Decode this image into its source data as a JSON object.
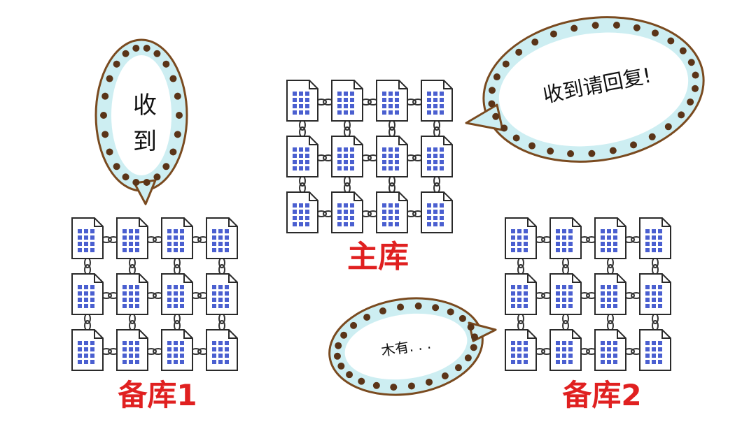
{
  "colors": {
    "label": "#e02020",
    "doc_border": "#2a2a2a",
    "doc_grid": "#4a5fd0",
    "bubble_fill": "#cdeef2",
    "bubble_outline": "#7a4a1f",
    "bubble_dot": "#5a3418",
    "chain": "#333333"
  },
  "icons": {
    "document": "document-grid-icon",
    "link": "chain-link-icon"
  },
  "grid": {
    "rows": 3,
    "cols": 4
  },
  "databases": {
    "primary": {
      "label": "主库"
    },
    "backup1": {
      "label": "备库1"
    },
    "backup2": {
      "label": "备库2"
    }
  },
  "bubbles": {
    "backup1": {
      "line1": "收",
      "line2": "到"
    },
    "primary": {
      "text": "收到请回复!"
    },
    "backup2": {
      "text": "木有. . ."
    }
  }
}
